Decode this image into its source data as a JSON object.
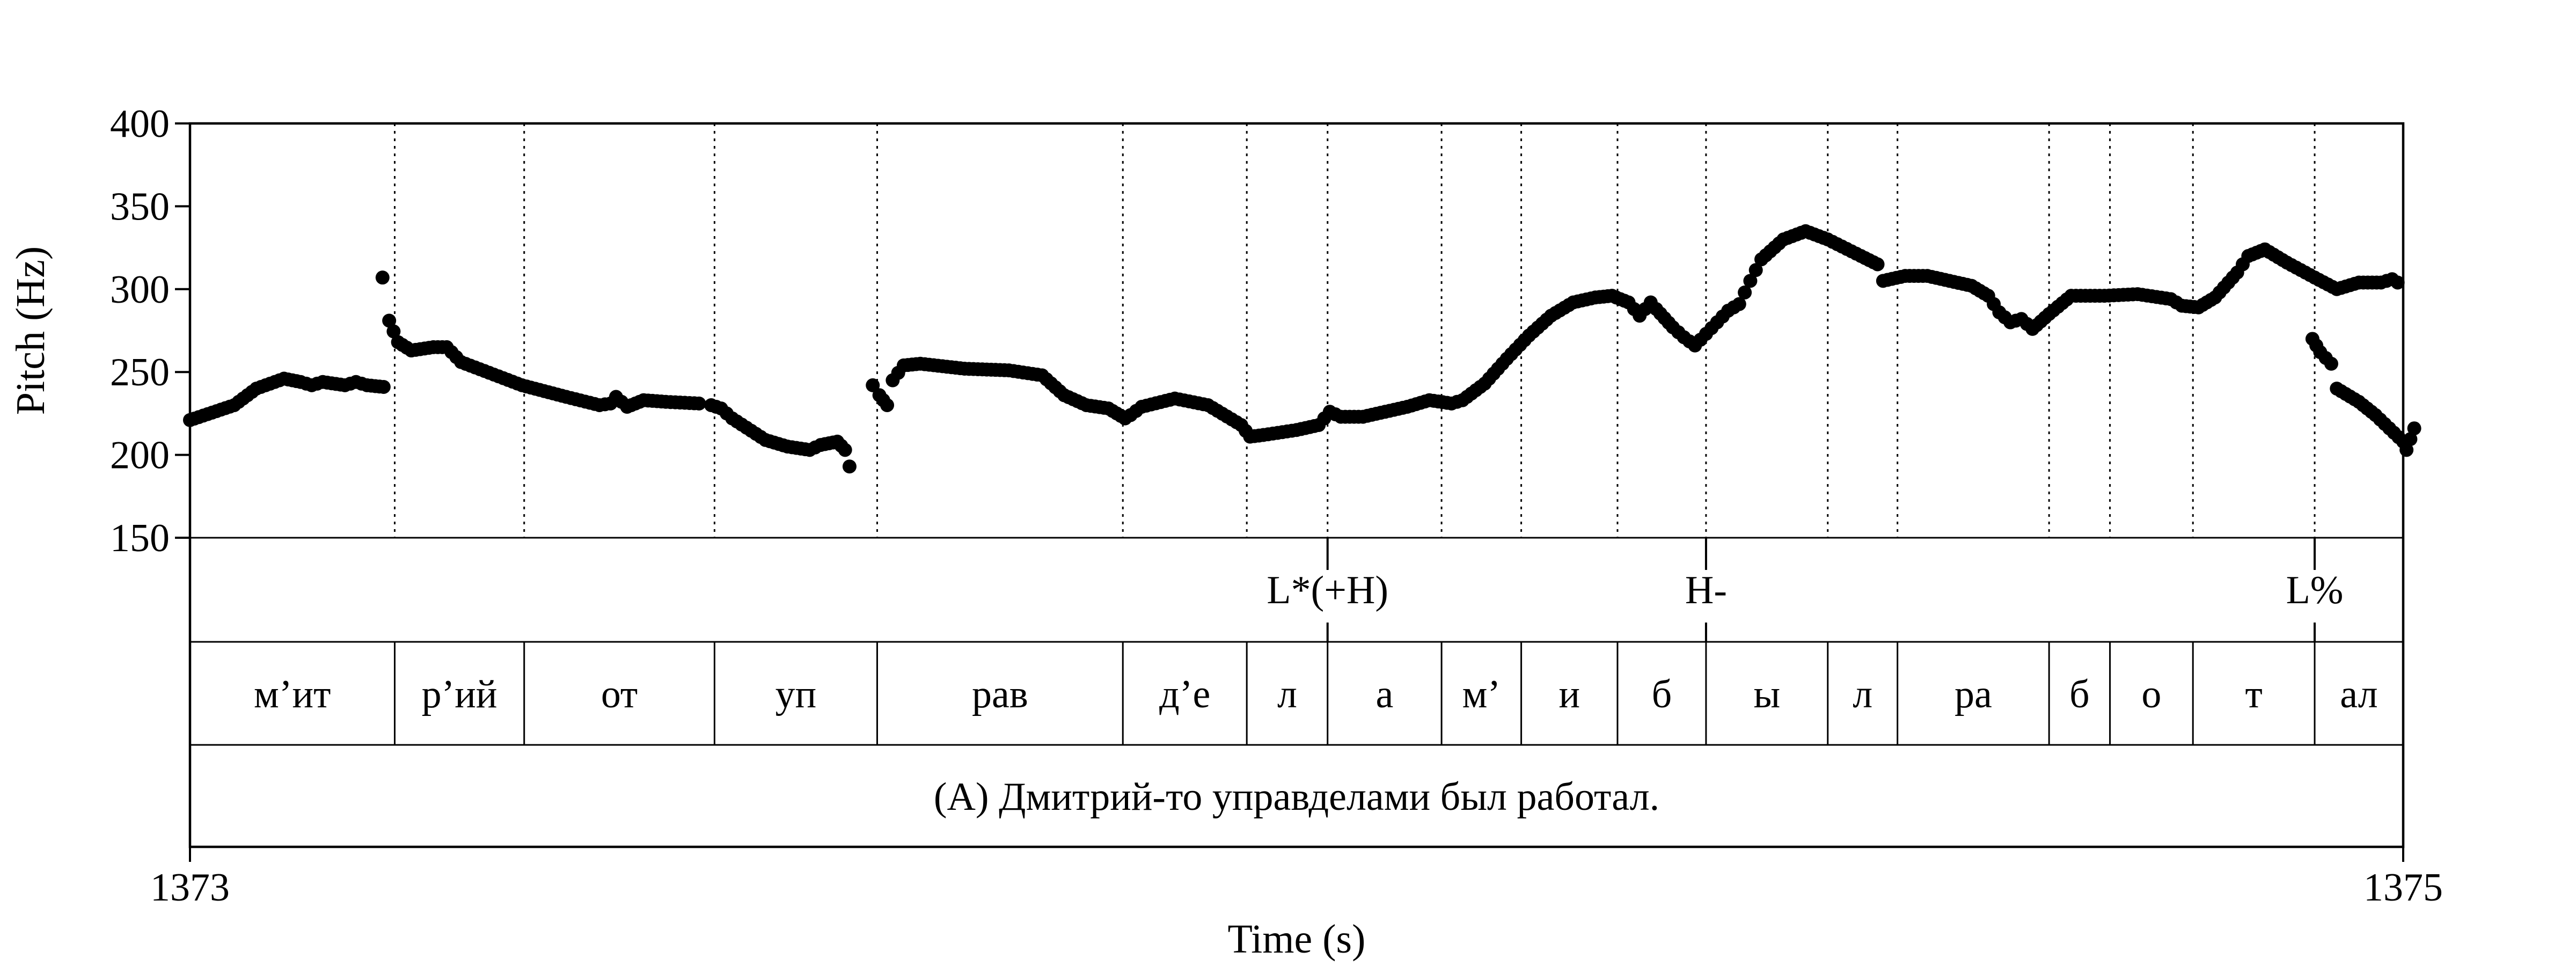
{
  "chart_data": {
    "type": "scatter",
    "xlabel": "Time (s)",
    "ylabel": "Pitch (Hz)",
    "xlim": [
      1373,
      1375
    ],
    "ylim": [
      150,
      400
    ],
    "x_tick_labels": [
      "1373",
      "1375"
    ],
    "y_ticks": [
      150,
      200,
      250,
      300,
      350,
      400
    ],
    "y_tick_labels": [
      "150",
      "200",
      "250",
      "300",
      "350",
      "400"
    ],
    "grid": false,
    "segments": [
      {
        "label": "м’ит",
        "start": 1373.0,
        "end": 1373.185
      },
      {
        "label": "р’ий",
        "start": 1373.185,
        "end": 1373.302
      },
      {
        "label": "от",
        "start": 1373.302,
        "end": 1373.474
      },
      {
        "label": "уп",
        "start": 1373.474,
        "end": 1373.621
      },
      {
        "label": "рав",
        "start": 1373.621,
        "end": 1373.843
      },
      {
        "label": "д’е",
        "start": 1373.843,
        "end": 1373.955
      },
      {
        "label": "л",
        "start": 1373.955,
        "end": 1374.028
      },
      {
        "label": "а",
        "start": 1374.028,
        "end": 1374.131
      },
      {
        "label": "м’",
        "start": 1374.131,
        "end": 1374.203
      },
      {
        "label": "и",
        "start": 1374.203,
        "end": 1374.29
      },
      {
        "label": "б",
        "start": 1374.29,
        "end": 1374.37
      },
      {
        "label": "ы",
        "start": 1374.37,
        "end": 1374.48
      },
      {
        "label": "л",
        "start": 1374.48,
        "end": 1374.543
      },
      {
        "label": "ра",
        "start": 1374.543,
        "end": 1374.68
      },
      {
        "label": "б",
        "start": 1374.68,
        "end": 1374.735
      },
      {
        "label": "о",
        "start": 1374.735,
        "end": 1374.81
      },
      {
        "label": "т",
        "start": 1374.81,
        "end": 1374.92
      },
      {
        "label": "ал",
        "start": 1374.92,
        "end": 1375.0
      }
    ],
    "tones": [
      {
        "label": "L*(+H)",
        "time": 1374.028
      },
      {
        "label": "H-",
        "time": 1374.37
      },
      {
        "label": "L%",
        "time": 1374.92
      }
    ],
    "sentence": "(А) Дмитрий-то управделами был работал.",
    "pitch_contour": [
      [
        1373.0,
        221
      ],
      [
        1373.04,
        230
      ],
      [
        1373.06,
        240
      ],
      [
        1373.085,
        246
      ],
      [
        1373.1,
        244
      ],
      [
        1373.11,
        242
      ],
      [
        1373.12,
        244
      ],
      [
        1373.14,
        242
      ],
      [
        1373.15,
        244
      ],
      [
        1373.16,
        242
      ],
      [
        1373.175,
        241
      ],
      [
        1373.18,
        null
      ],
      [
        1373.174,
        307
      ],
      [
        1373.18,
        281
      ],
      [
        1373.188,
        268
      ],
      [
        1373.2,
        263
      ],
      [
        1373.22,
        265
      ],
      [
        1373.232,
        265
      ],
      [
        1373.245,
        256
      ],
      [
        1373.3,
        242
      ],
      [
        1373.34,
        235
      ],
      [
        1373.37,
        230
      ],
      [
        1373.38,
        231
      ],
      [
        1373.385,
        235
      ],
      [
        1373.395,
        229
      ],
      [
        1373.41,
        233
      ],
      [
        1373.43,
        232
      ],
      [
        1373.46,
        231
      ],
      [
        1373.47,
        null
      ],
      [
        1373.471,
        230
      ],
      [
        1373.48,
        228
      ],
      [
        1373.49,
        222
      ],
      [
        1373.52,
        209
      ],
      [
        1373.54,
        205
      ],
      [
        1373.56,
        203
      ],
      [
        1373.57,
        206
      ],
      [
        1373.585,
        208
      ],
      [
        1373.592,
        203
      ],
      [
        1373.596,
        193
      ],
      [
        1373.6,
        null
      ],
      [
        1373.617,
        242
      ],
      [
        1373.623,
        236
      ],
      [
        1373.63,
        230
      ],
      [
        1373.635,
        245
      ],
      [
        1373.645,
        254
      ],
      [
        1373.66,
        255
      ],
      [
        1373.7,
        252
      ],
      [
        1373.74,
        251
      ],
      [
        1373.77,
        248
      ],
      [
        1373.79,
        236
      ],
      [
        1373.81,
        230
      ],
      [
        1373.83,
        228
      ],
      [
        1373.845,
        222
      ],
      [
        1373.85,
        224
      ],
      [
        1373.86,
        229
      ],
      [
        1373.89,
        234
      ],
      [
        1373.92,
        230
      ],
      [
        1373.95,
        218
      ],
      [
        1373.958,
        211
      ],
      [
        1373.97,
        212
      ],
      [
        1374.0,
        215
      ],
      [
        1374.02,
        218
      ],
      [
        1374.03,
        226
      ],
      [
        1374.04,
        223
      ],
      [
        1374.06,
        223
      ],
      [
        1374.1,
        229
      ],
      [
        1374.12,
        233
      ],
      [
        1374.14,
        231
      ],
      [
        1374.15,
        233
      ],
      [
        1374.17,
        243
      ],
      [
        1374.19,
        258
      ],
      [
        1374.21,
        272
      ],
      [
        1374.23,
        284
      ],
      [
        1374.25,
        292
      ],
      [
        1374.27,
        295
      ],
      [
        1374.285,
        296
      ],
      [
        1374.3,
        292
      ],
      [
        1374.31,
        284
      ],
      [
        1374.32,
        292
      ],
      [
        1374.325,
        288
      ],
      [
        1374.34,
        277
      ],
      [
        1374.35,
        271
      ],
      [
        1374.36,
        266
      ],
      [
        1374.37,
        273
      ],
      [
        1374.38,
        280
      ],
      [
        1374.39,
        287
      ],
      [
        1374.4,
        291
      ],
      [
        1374.41,
        305
      ],
      [
        1374.42,
        318
      ],
      [
        1374.44,
        330
      ],
      [
        1374.46,
        335
      ],
      [
        1374.48,
        330
      ],
      [
        1374.51,
        320
      ],
      [
        1374.525,
        315
      ],
      [
        1374.53,
        305
      ],
      [
        1374.55,
        308
      ],
      [
        1374.57,
        308
      ],
      [
        1374.59,
        305
      ],
      [
        1374.61,
        302
      ],
      [
        1374.625,
        296
      ],
      [
        1374.635,
        286
      ],
      [
        1374.645,
        280
      ],
      [
        1374.655,
        282
      ],
      [
        1374.665,
        276
      ],
      [
        1374.68,
        285
      ],
      [
        1374.7,
        296
      ],
      [
        1374.73,
        296
      ],
      [
        1374.76,
        297
      ],
      [
        1374.79,
        294
      ],
      [
        1374.8,
        290
      ],
      [
        1374.815,
        289
      ],
      [
        1374.83,
        295
      ],
      [
        1374.85,
        310
      ],
      [
        1374.86,
        320
      ],
      [
        1374.875,
        324
      ],
      [
        1374.895,
        316
      ],
      [
        1374.92,
        307
      ],
      [
        1374.94,
        300
      ],
      [
        1374.96,
        304
      ],
      [
        1374.98,
        304
      ],
      [
        1374.99,
        306
      ],
      [
        1374.995,
        304
      ],
      [
        1375.0,
        null
      ],
      [
        1374.918,
        270
      ],
      [
        1374.925,
        262
      ],
      [
        1374.935,
        255
      ],
      [
        1374.94,
        240
      ],
      [
        1374.96,
        232
      ],
      [
        1374.975,
        224
      ],
      [
        1375.0,
        208
      ],
      [
        1375.003,
        203
      ],
      [
        1375.01,
        216
      ]
    ]
  }
}
